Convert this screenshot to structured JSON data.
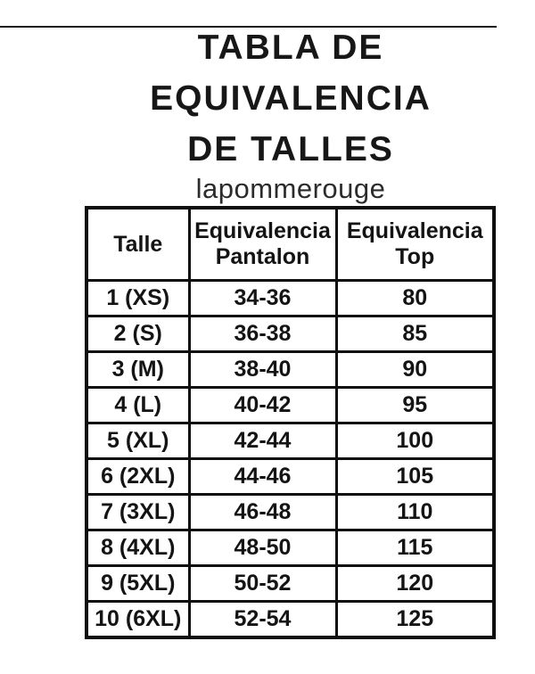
{
  "title": {
    "lines": [
      "TABLA DE",
      "EQUIVALENCIA",
      "DE TALLES"
    ]
  },
  "brand": "lapommerouge",
  "colors": {
    "background": "#ffffff",
    "text": "#141414",
    "border": "#0f0f0f"
  },
  "table": {
    "col1_header": "Talle",
    "col2_header": [
      "Equivalencia",
      "Pantalon"
    ],
    "col3_header": [
      "Equivalencia",
      "Top"
    ],
    "rows": [
      {
        "talle": "1 (XS)",
        "pantalon": "34-36",
        "top": "80"
      },
      {
        "talle": "2 (S)",
        "pantalon": "36-38",
        "top": "85"
      },
      {
        "talle": "3 (M)",
        "pantalon": "38-40",
        "top": "90"
      },
      {
        "talle": "4 (L)",
        "pantalon": "40-42",
        "top": "95"
      },
      {
        "talle": "5 (XL)",
        "pantalon": "42-44",
        "top": "100"
      },
      {
        "talle": "6 (2XL)",
        "pantalon": "44-46",
        "top": "105"
      },
      {
        "talle": "7 (3XL)",
        "pantalon": "46-48",
        "top": "110"
      },
      {
        "talle": "8 (4XL)",
        "pantalon": "48-50",
        "top": "115"
      },
      {
        "talle": "9 (5XL)",
        "pantalon": "50-52",
        "top": "120"
      },
      {
        "talle": "10 (6XL)",
        "pantalon": "52-54",
        "top": "125"
      }
    ]
  }
}
